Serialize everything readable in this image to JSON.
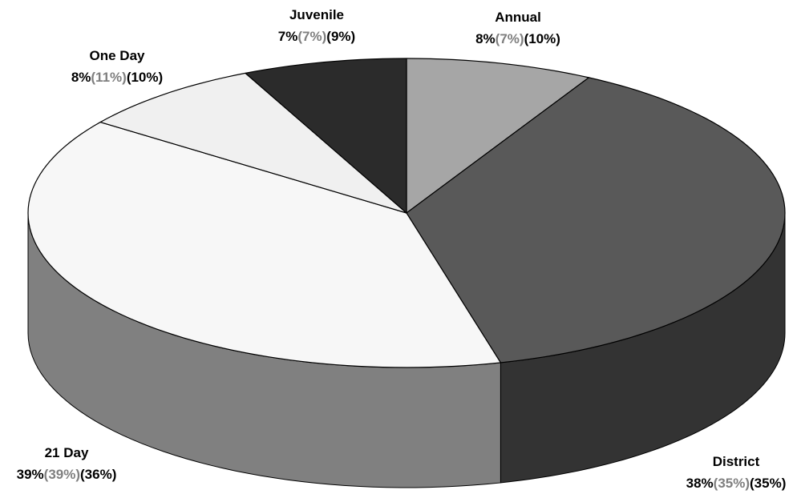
{
  "chart_data": {
    "type": "pie",
    "style": "3d",
    "slices": [
      {
        "label": "Annual",
        "value": 8,
        "values": [
          "8%",
          "7%",
          "10%"
        ],
        "color": "#a6a6a6",
        "side_color": "#7a7a7a"
      },
      {
        "label": "District",
        "value": 38,
        "values": [
          "38%",
          "35%",
          "35%"
        ],
        "color": "#595959",
        "side_color": "#333333"
      },
      {
        "label": "21 Day",
        "value": 39,
        "values": [
          "39%",
          "39%",
          "36%"
        ],
        "color": "#f7f7f7",
        "side_color": "#808080"
      },
      {
        "label": "One Day",
        "value": 8,
        "values": [
          "8%",
          "11%",
          "10%"
        ],
        "color": "#f0f0f0",
        "side_color": "#bfbfbf"
      },
      {
        "label": "Juvenile",
        "value": 7,
        "values": [
          "7%",
          "7%",
          "9%"
        ],
        "color": "#2b2b2b",
        "side_color": "#1a1a1a"
      }
    ],
    "value_colors": [
      "#000000",
      "#7f7f7f",
      "#000000"
    ],
    "legend": "none"
  }
}
